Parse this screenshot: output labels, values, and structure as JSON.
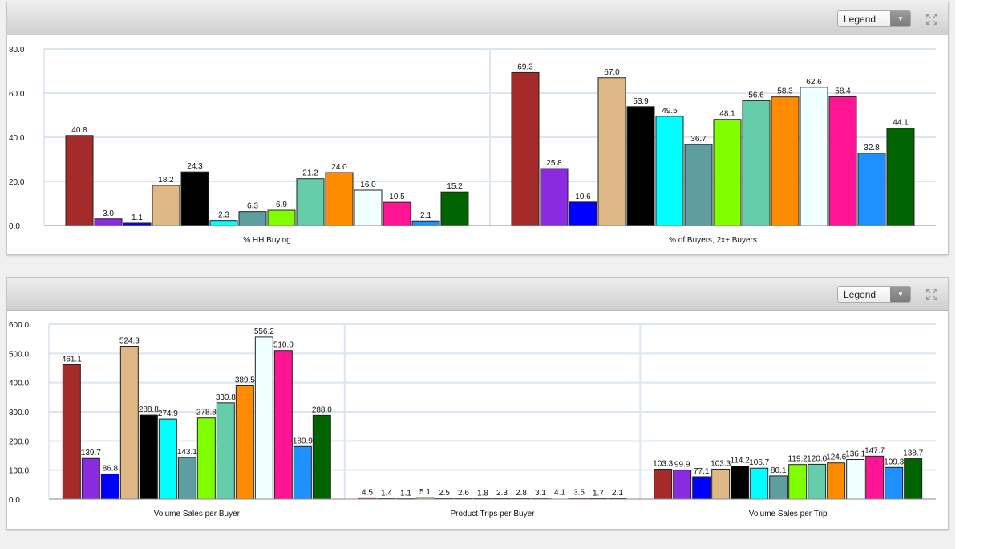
{
  "widgets": [
    {
      "legend_label": "Legend",
      "expand_icon": "expand-icon",
      "chart_data": {
        "type": "bar",
        "ylim": [
          0,
          80
        ],
        "yticks": [
          "0.0",
          "20.0",
          "40.0",
          "60.0",
          "80.0"
        ],
        "grid": true,
        "colors": [
          "#a52a2a",
          "#8a2be2",
          "#0000ff",
          "#deb887",
          "#000000",
          "#00ffff",
          "#5f9ea0",
          "#7fff00",
          "#66cdaa",
          "#ff8c00",
          "#f0ffff",
          "#ff1493",
          "#1e90ff",
          "#006400"
        ],
        "groups": [
          {
            "label": "% HH Buying",
            "values": [
              40.8,
              3.0,
              1.1,
              18.2,
              24.3,
              2.3,
              6.3,
              6.9,
              21.2,
              24.0,
              16.0,
              10.5,
              2.1,
              15.2
            ]
          },
          {
            "label": "% of Buyers, 2x+ Buyers",
            "values": [
              69.3,
              25.8,
              10.6,
              67.0,
              53.9,
              49.5,
              36.7,
              48.1,
              56.6,
              58.3,
              62.6,
              58.4,
              32.8,
              44.1
            ]
          }
        ]
      }
    },
    {
      "legend_label": "Legend",
      "expand_icon": "expand-icon",
      "chart_data": {
        "type": "bar",
        "ylim": [
          0,
          600
        ],
        "yticks": [
          "0.0",
          "100.0",
          "200.0",
          "300.0",
          "400.0",
          "500.0",
          "600.0"
        ],
        "grid": true,
        "colors": [
          "#a52a2a",
          "#8a2be2",
          "#0000ff",
          "#deb887",
          "#000000",
          "#00ffff",
          "#5f9ea0",
          "#7fff00",
          "#66cdaa",
          "#ff8c00",
          "#f0ffff",
          "#ff1493",
          "#1e90ff",
          "#006400"
        ],
        "groups": [
          {
            "label": "Volume Sales per Buyer",
            "values": [
              461.1,
              139.7,
              86.8,
              524.3,
              288.8,
              274.9,
              143.1,
              278.8,
              330.8,
              389.5,
              556.2,
              510.0,
              180.9,
              288.0
            ]
          },
          {
            "label": "Product Trips per Buyer",
            "values": [
              4.5,
              1.4,
              1.1,
              5.1,
              2.5,
              2.6,
              1.8,
              2.3,
              2.8,
              3.1,
              4.1,
              3.5,
              1.7,
              2.1
            ]
          },
          {
            "label": "Volume Sales per Trip",
            "values": [
              103.3,
              99.9,
              77.1,
              103.3,
              114.2,
              106.7,
              80.1,
              119.2,
              120.0,
              124.6,
              136.1,
              147.7,
              109.3,
              138.7
            ]
          }
        ]
      }
    }
  ]
}
